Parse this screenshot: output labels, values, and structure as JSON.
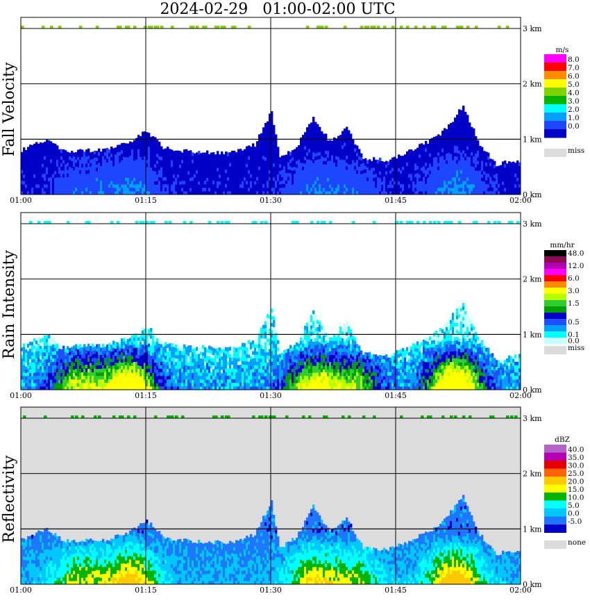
{
  "title": "2024-02-29   01:00-02:00 UTC",
  "time_labels": [
    "01:00",
    "01:15",
    "01:30",
    "01:45",
    "02:00"
  ],
  "height_labels": [
    "0 km",
    "1 km",
    "2 km",
    "3 km"
  ],
  "panels": [
    {
      "ylabel": "Fall Velocity",
      "background": "#ffffff",
      "unit": "m/s",
      "legend": [
        {
          "label": "8.0",
          "color": "#ff00ff"
        },
        {
          "label": "7.0",
          "color": "#ff0000"
        },
        {
          "label": "6.0",
          "color": "#ff8c00"
        },
        {
          "label": "5.0",
          "color": "#ffff00"
        },
        {
          "label": "4.0",
          "color": "#7fd400"
        },
        {
          "label": "3.0",
          "color": "#00b400"
        },
        {
          "label": "2.0",
          "color": "#00ffff"
        },
        {
          "label": "1.0",
          "color": "#00a0ff"
        },
        {
          "label": "0.0",
          "color": "#1e46ff"
        },
        {
          "label": "",
          "color": "#0000c8"
        }
      ],
      "missing_label": "miss",
      "missing_color": "#dcdcdc"
    },
    {
      "ylabel": "Rain Intensity",
      "background": "#ffffff",
      "unit": "mm/hr",
      "legend": [
        {
          "label": "48.0",
          "color": "#000000"
        },
        {
          "label": "",
          "color": "#8b0a50"
        },
        {
          "label": "12.0",
          "color": "#b400b4"
        },
        {
          "label": "",
          "color": "#ff00ff"
        },
        {
          "label": "6.0",
          "color": "#ff0000"
        },
        {
          "label": "",
          "color": "#ff8c00"
        },
        {
          "label": "3.0",
          "color": "#ffff00"
        },
        {
          "label": "",
          "color": "#b4ff00"
        },
        {
          "label": "1.5",
          "color": "#32cd32"
        },
        {
          "label": "",
          "color": "#00a000"
        },
        {
          "label": "",
          "color": "#0000c8"
        },
        {
          "label": "0.5",
          "color": "#1e50ff"
        },
        {
          "label": "",
          "color": "#00a0ff"
        },
        {
          "label": "0.1",
          "color": "#00ffff"
        },
        {
          "label": "0.0",
          "color": "#c8ffff"
        }
      ],
      "missing_label": "miss",
      "missing_color": "#dcdcdc"
    },
    {
      "ylabel": "Reflectivity",
      "background": "#dcdcdc",
      "unit": "dBZ",
      "legend": [
        {
          "label": "40.0",
          "color": "#b464c8"
        },
        {
          "label": "35.0",
          "color": "#b400b4"
        },
        {
          "label": "30.0",
          "color": "#e60000"
        },
        {
          "label": "25.0",
          "color": "#ff6400"
        },
        {
          "label": "20.0",
          "color": "#ffc800"
        },
        {
          "label": "15.0",
          "color": "#ffff00"
        },
        {
          "label": "10.0",
          "color": "#00b400"
        },
        {
          "label": "5.0",
          "color": "#00ffff"
        },
        {
          "label": "0.0",
          "color": "#00c8ff"
        },
        {
          "label": "-5.0",
          "color": "#1e78ff"
        },
        {
          "label": "",
          "color": "#0000c8"
        }
      ],
      "missing_label": "none",
      "missing_color": "#dcdcdc"
    }
  ],
  "chart_data": {
    "type": "heatmap",
    "title": "2024-02-29   01:00-02:00 UTC",
    "x_range": [
      "01:00",
      "02:00"
    ],
    "y_range_km": [
      0,
      3
    ],
    "grid": true,
    "echo_top_profile": {
      "time": [
        "01:00",
        "01:03",
        "01:05",
        "01:10",
        "01:13",
        "01:15",
        "01:17",
        "01:20",
        "01:25",
        "01:28",
        "01:30",
        "01:31",
        "01:33",
        "01:35",
        "01:37",
        "01:39",
        "01:41",
        "01:44",
        "01:46",
        "01:48",
        "01:50",
        "01:51",
        "01:53",
        "01:55",
        "01:57",
        "02:00"
      ],
      "top_km": [
        0.8,
        1.0,
        0.78,
        0.8,
        0.95,
        1.15,
        0.85,
        0.78,
        0.75,
        0.9,
        1.5,
        0.65,
        0.85,
        1.4,
        0.95,
        1.2,
        0.65,
        0.62,
        0.75,
        0.9,
        1.05,
        1.2,
        1.6,
        0.9,
        0.55,
        0.62
      ]
    },
    "panels": [
      "Fall Velocity",
      "Rain Intensity",
      "Reflectivity"
    ]
  }
}
